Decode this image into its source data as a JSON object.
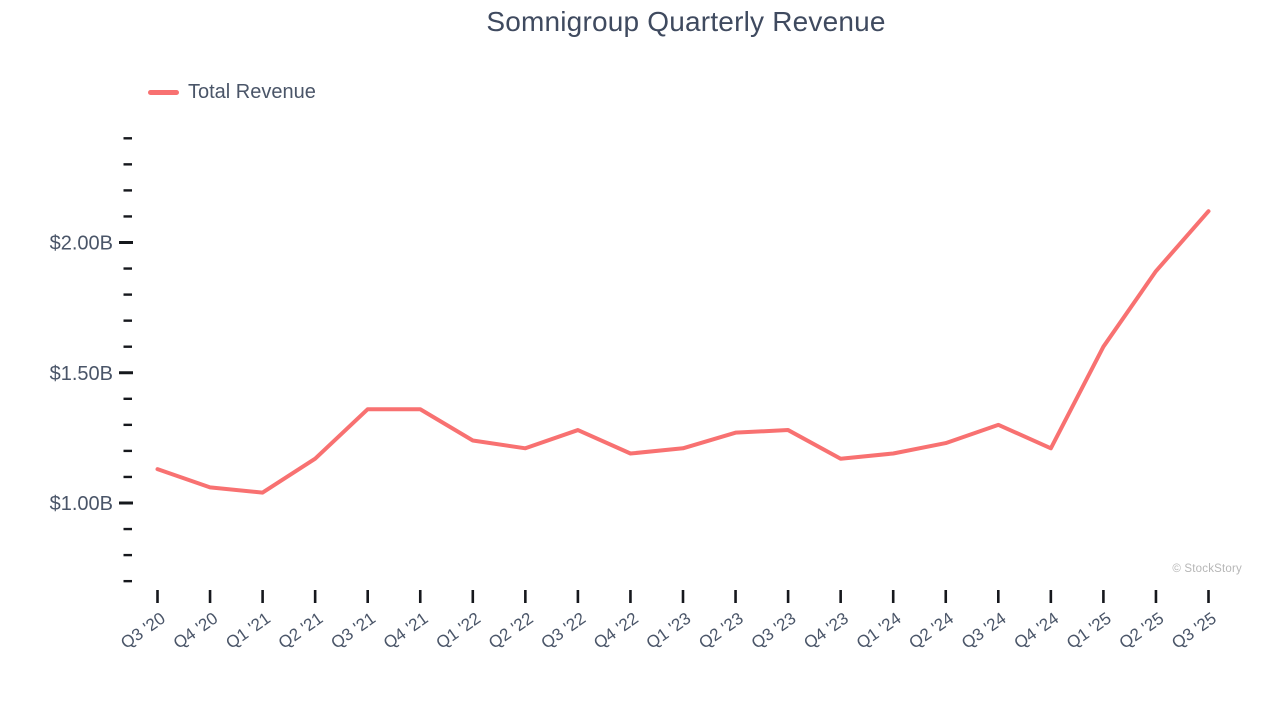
{
  "watermark": "© StockStory",
  "colors": {
    "line": "#f87171",
    "axis_text": "#4a5568",
    "title_text": "#3f4a5f",
    "tick": "#16181d",
    "watermark_text": "#b6b6b6"
  },
  "chart_data": {
    "type": "line",
    "title": "Somnigroup Quarterly Revenue",
    "xlabel": "",
    "ylabel": "",
    "grid": false,
    "legend": {
      "position": "top-left",
      "entries": [
        "Total Revenue"
      ]
    },
    "categories": [
      "Q3 '20",
      "Q4 '20",
      "Q1 '21",
      "Q2 '21",
      "Q3 '21",
      "Q4 '21",
      "Q1 '22",
      "Q2 '22",
      "Q3 '22",
      "Q4 '22",
      "Q1 '23",
      "Q2 '23",
      "Q3 '23",
      "Q4 '23",
      "Q1 '24",
      "Q2 '24",
      "Q3 '24",
      "Q4 '24",
      "Q1 '25",
      "Q2 '25",
      "Q3 '25"
    ],
    "series": [
      {
        "name": "Total Revenue",
        "units": "billions USD",
        "values": [
          1.13,
          1.06,
          1.04,
          1.17,
          1.36,
          1.36,
          1.24,
          1.21,
          1.28,
          1.19,
          1.21,
          1.27,
          1.28,
          1.17,
          1.19,
          1.23,
          1.3,
          1.21,
          1.6,
          1.89,
          2.12
        ]
      }
    ],
    "y_axis": {
      "min": 0.7,
      "max": 2.4,
      "minor_step": 0.1,
      "labeled_ticks": [
        {
          "value": 2.0,
          "label": "$2.00B"
        },
        {
          "value": 1.5,
          "label": "$1.50B"
        },
        {
          "value": 1.0,
          "label": "$1.00B"
        }
      ]
    }
  }
}
